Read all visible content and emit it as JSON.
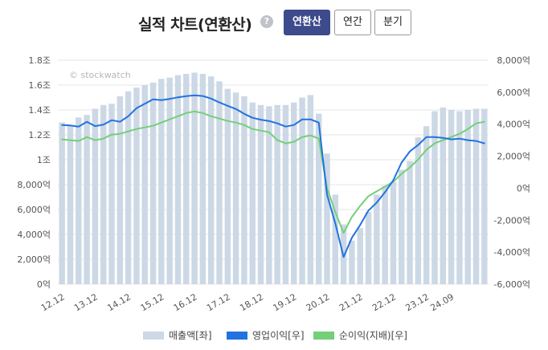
{
  "header": {
    "title": "실적 차트(연환산)",
    "help_icon": "?",
    "tabs": [
      {
        "label": "연환산",
        "active": true
      },
      {
        "label": "연간",
        "active": false
      },
      {
        "label": "분기",
        "active": false
      }
    ]
  },
  "watermark": "© stockwatch",
  "colors": {
    "bar": "#ccd8e5",
    "operating": "#2272e0",
    "net": "#74cf78",
    "active_tab": "#3d4a8c"
  },
  "chart_data": {
    "type": "bar+line",
    "y_left": {
      "range": [
        0,
        18000
      ],
      "ticks": [
        0,
        2000,
        4000,
        6000,
        8000,
        10000,
        12000,
        14000,
        16000,
        18000
      ],
      "tick_labels": [
        "0억",
        "2,000억",
        "4,000억",
        "6,000억",
        "8,000억",
        "1조",
        "1.2조",
        "1.4조",
        "1.6조",
        "1.8조"
      ]
    },
    "y_right": {
      "range": [
        -6000,
        8000
      ],
      "ticks": [
        -6000,
        -4000,
        -2000,
        0,
        2000,
        4000,
        6000,
        8000
      ],
      "tick_labels": [
        "-6,000억",
        "-4,000억",
        "-2,000억",
        "0억",
        "2,000억",
        "4,000억",
        "6,000억",
        "8,000억"
      ]
    },
    "x_labels": [
      "12.12",
      "13.12",
      "14.12",
      "15.12",
      "16.12",
      "17.12",
      "18.12",
      "19.12",
      "20.12",
      "21.12",
      "22.12",
      "23.12",
      "24.09"
    ],
    "x_label_index": [
      0,
      4,
      8,
      12,
      16,
      20,
      24,
      28,
      32,
      36,
      40,
      44,
      47
    ],
    "grid": true,
    "legend_position": "bottom",
    "series": [
      {
        "name": "매출액[좌]",
        "type": "bar",
        "axis": "left",
        "values": [
          13000,
          12800,
          13400,
          13600,
          14100,
          14400,
          14500,
          15100,
          15500,
          15800,
          16000,
          16200,
          16500,
          16600,
          16800,
          16900,
          17000,
          16900,
          16700,
          16300,
          15700,
          15400,
          15100,
          14600,
          14400,
          14300,
          14400,
          14400,
          14600,
          15000,
          15200,
          13700,
          10500,
          7200,
          4800,
          3500,
          4500,
          5800,
          7200,
          7900,
          8200,
          9200,
          9900,
          11800,
          12700,
          13900,
          14200,
          14000,
          13900,
          14000,
          14100,
          14100
        ]
      },
      {
        "name": "영업이익[우]",
        "type": "line",
        "axis": "right",
        "values": [
          3950,
          3920,
          3850,
          4150,
          3880,
          3970,
          4250,
          4150,
          4500,
          5000,
          5280,
          5550,
          5500,
          5580,
          5680,
          5750,
          5800,
          5760,
          5600,
          5360,
          5150,
          4950,
          4650,
          4400,
          4280,
          4200,
          4050,
          3850,
          3950,
          4300,
          4300,
          4100,
          -400,
          -2200,
          -4300,
          -3100,
          -2300,
          -1400,
          -900,
          -250,
          500,
          1600,
          2300,
          2700,
          3200,
          3200,
          3150,
          3050,
          3100,
          3000,
          2950,
          2800
        ]
      },
      {
        "name": "순이익(지배)[우]",
        "type": "line",
        "axis": "right",
        "values": [
          3050,
          3000,
          2950,
          3200,
          3000,
          3100,
          3350,
          3400,
          3550,
          3700,
          3800,
          3900,
          4100,
          4300,
          4500,
          4700,
          4800,
          4700,
          4500,
          4350,
          4200,
          4100,
          3950,
          3700,
          3600,
          3500,
          3000,
          2800,
          2900,
          3200,
          3300,
          3100,
          0,
          -1500,
          -2800,
          -1800,
          -1100,
          -500,
          -200,
          100,
          400,
          900,
          1300,
          1800,
          2400,
          2800,
          3000,
          3200,
          3400,
          3700,
          4050,
          4150
        ]
      }
    ]
  }
}
